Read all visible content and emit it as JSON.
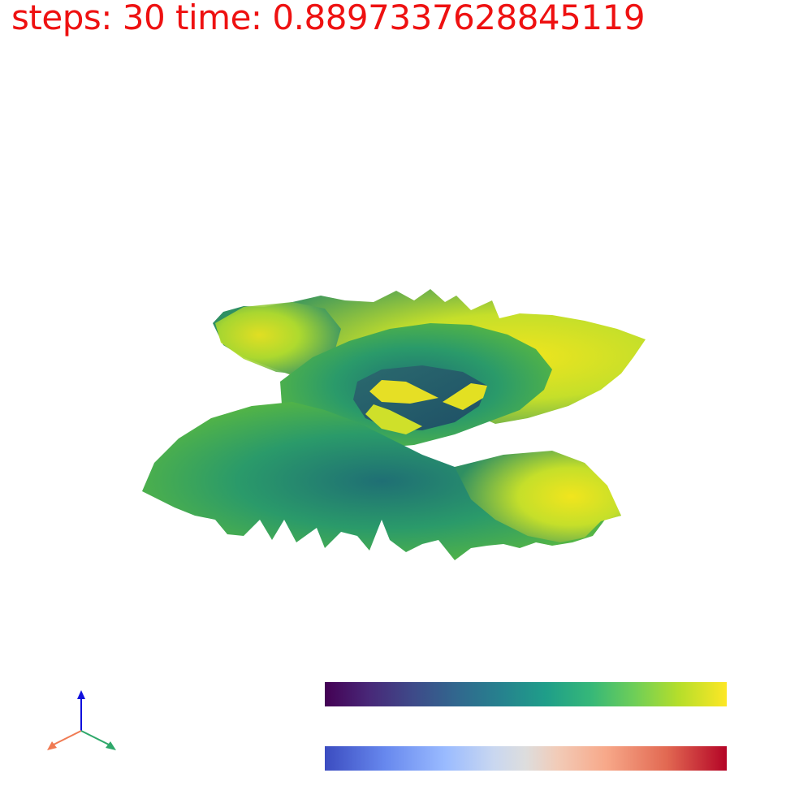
{
  "status_text": "steps: 30 time: 0.8897337628845119",
  "colors": {
    "status_text": "#ee1111",
    "background": "#ffffff",
    "axis_x": "#f07a52",
    "axis_y": "#2ea86a",
    "axis_z": "#1010dd"
  },
  "scene": {
    "object": "3d-surface-mesh",
    "colormap": "viridis"
  },
  "colorbars": [
    {
      "name": "viridis"
    },
    {
      "name": "coolwarm"
    }
  ],
  "orientation_axes": {
    "axes": [
      "x",
      "y",
      "z"
    ]
  }
}
